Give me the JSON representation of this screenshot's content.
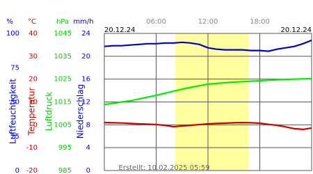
{
  "chart_data": {
    "type": "line",
    "date_start": "20.12.24",
    "date_end": "20.12.24",
    "created": "Erstellt: 10.02.2025 05:59",
    "x": [
      0,
      1,
      2,
      3,
      4,
      5,
      6,
      7,
      8,
      9,
      10,
      11,
      12,
      13,
      14,
      15,
      16,
      17,
      18,
      19,
      20,
      21,
      22,
      23,
      24
    ],
    "xlim": [
      0,
      24
    ],
    "xticks": [
      {
        "value": 6,
        "label": "06:00"
      },
      {
        "value": 12,
        "label": "12:00"
      },
      {
        "value": 18,
        "label": "18:00"
      }
    ],
    "highlight": [
      8.2,
      16.7
    ],
    "highlight_color": "#ffffa0",
    "axes": [
      {
        "unit": "%",
        "label": "Luftfeuchtigkeit",
        "color": "#0000cc",
        "ylim": [
          0,
          100
        ],
        "yticks": [
          0,
          25,
          50,
          75,
          100
        ]
      },
      {
        "unit": "°C",
        "label": "Temperatur",
        "color": "#cc0000",
        "ylim": [
          -20,
          40
        ],
        "yticks": [
          -20,
          -10,
          0,
          10,
          20,
          30,
          40
        ]
      },
      {
        "unit": "hPa",
        "label": "Luftdruck",
        "color": "#00cc00",
        "ylim": [
          985,
          1045
        ],
        "yticks": [
          985,
          995,
          1005,
          1015,
          1025,
          1035,
          1045
        ]
      },
      {
        "unit": "mm/h",
        "label": "Niederschlag",
        "color": "#0000cc",
        "ylim": [
          0,
          24
        ],
        "yticks": [
          0,
          4,
          8,
          12,
          16,
          20,
          24
        ]
      }
    ],
    "grid_axis": 3,
    "series": [
      {
        "axis": 0,
        "color": "#0000cc",
        "values": [
          90.5,
          91,
          91,
          91.5,
          92,
          92.5,
          92.5,
          93,
          93,
          93.5,
          93,
          92,
          89.5,
          88.5,
          88,
          88,
          88,
          87.5,
          87.5,
          87,
          88.5,
          89.5,
          90.5,
          92.5,
          95
        ]
      },
      {
        "axis": 1,
        "color": "#cc0000",
        "values": [
          1.0,
          0.9,
          0.8,
          0.6,
          0.4,
          0.3,
          0.1,
          -0.2,
          -0.8,
          -0.5,
          -0.2,
          0.1,
          0.4,
          0.6,
          0.7,
          0.9,
          1.0,
          0.9,
          0.7,
          0.2,
          -0.2,
          -0.9,
          -1.7,
          -2.0,
          -1.4
        ]
      },
      {
        "axis": 2,
        "color": "#00ee00",
        "values": [
          1013.9,
          1014.4,
          1015.0,
          1015.5,
          1016.3,
          1017.1,
          1017.9,
          1018.8,
          1019.7,
          1020.6,
          1021.4,
          1022.1,
          1022.8,
          1023.1,
          1023.4,
          1023.7,
          1023.9,
          1024.1,
          1024.3,
          1024.5,
          1024.7,
          1024.9,
          1025.0,
          1025.1,
          1025.2
        ]
      }
    ]
  }
}
